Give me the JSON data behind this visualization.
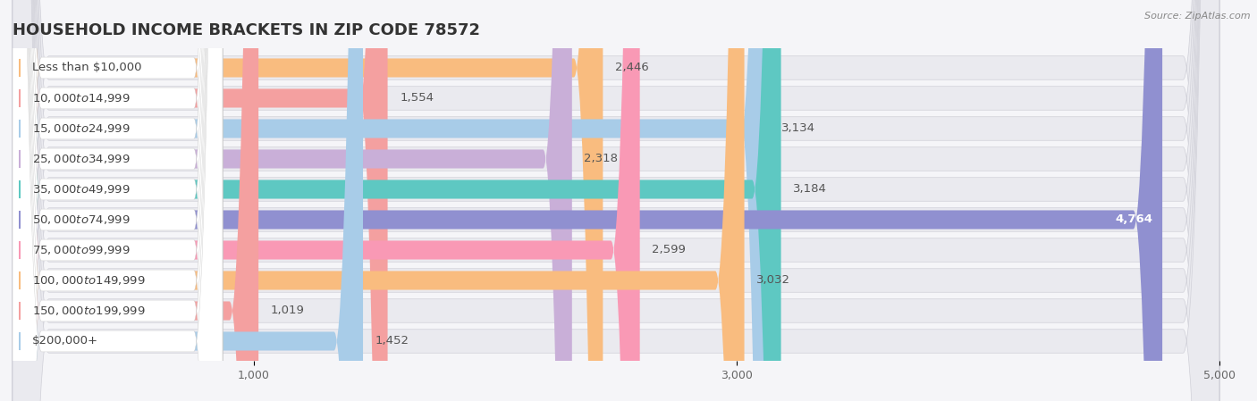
{
  "title": "HOUSEHOLD INCOME BRACKETS IN ZIP CODE 78572",
  "source": "Source: ZipAtlas.com",
  "categories": [
    "Less than $10,000",
    "$10,000 to $14,999",
    "$15,000 to $24,999",
    "$25,000 to $34,999",
    "$35,000 to $49,999",
    "$50,000 to $74,999",
    "$75,000 to $99,999",
    "$100,000 to $149,999",
    "$150,000 to $199,999",
    "$200,000+"
  ],
  "values": [
    2446,
    1554,
    3134,
    2318,
    3184,
    4764,
    2599,
    3032,
    1019,
    1452
  ],
  "bar_colors": [
    "#f9bc7f",
    "#f4a0a0",
    "#a8cce8",
    "#c9afd8",
    "#5ec8c2",
    "#9090d0",
    "#f999b5",
    "#f9bc7f",
    "#f4a0a0",
    "#a8cce8"
  ],
  "background_color": "#f5f5f8",
  "bar_background": "#e8e8ee",
  "xlim": [
    0,
    5000
  ],
  "xticks": [
    1000,
    3000,
    5000
  ],
  "value_inside_idx": 5,
  "title_fontsize": 13,
  "label_fontsize": 9.5,
  "value_fontsize": 9.5
}
